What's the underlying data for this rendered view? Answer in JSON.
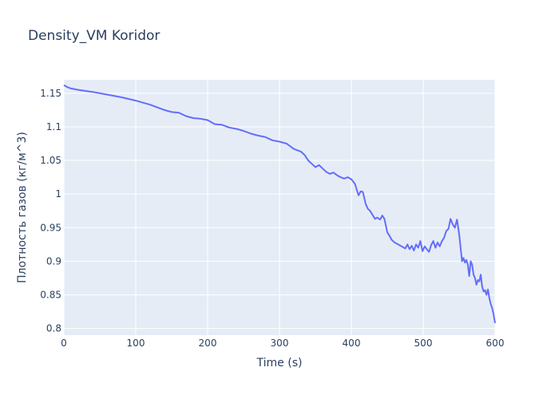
{
  "chart_data": {
    "type": "line",
    "title": "Density_VM Koridor",
    "xlabel": "Time (s)",
    "ylabel": "Плотность газов (кг/м^3)",
    "xlim": [
      0,
      600
    ],
    "ylim": [
      0.79,
      1.17
    ],
    "x_ticks": [
      0,
      100,
      200,
      300,
      400,
      500,
      600
    ],
    "x_tick_labels": [
      "0",
      "100",
      "200",
      "300",
      "400",
      "500",
      "600"
    ],
    "y_ticks": [
      0.8,
      0.85,
      0.9,
      0.95,
      1.0,
      1.05,
      1.1,
      1.15
    ],
    "y_tick_labels": [
      "0.8",
      "0.85",
      "0.9",
      "0.95",
      "1",
      "1.05",
      "1.1",
      "1.15"
    ],
    "grid": true,
    "legend": "none",
    "colors": {
      "plot_bg": "#e5ecf6",
      "grid": "#ffffff",
      "line": "#636efa",
      "text": "#2a3f5f"
    },
    "series": [
      {
        "x": [
          0,
          5,
          10,
          20,
          40,
          60,
          80,
          100,
          120,
          140,
          150,
          160,
          170,
          180,
          190,
          200,
          210,
          220,
          230,
          240,
          250,
          260,
          270,
          280,
          290,
          300,
          310,
          320,
          330,
          335,
          340,
          345,
          350,
          355,
          360,
          365,
          370,
          375,
          380,
          385,
          390,
          395,
          400,
          405,
          410,
          413,
          416,
          420,
          423,
          426,
          430,
          433,
          436,
          440,
          443,
          446,
          450,
          453,
          456,
          460,
          465,
          470,
          475,
          478,
          481,
          484,
          487,
          490,
          493,
          496,
          499,
          502,
          505,
          508,
          511,
          514,
          517,
          520,
          523,
          526,
          529,
          532,
          535,
          538,
          541,
          544,
          547,
          550,
          552,
          554,
          556,
          558,
          560,
          562,
          564,
          566,
          568,
          570,
          572,
          574,
          576,
          578,
          580,
          582,
          584,
          586,
          588,
          590,
          592,
          594,
          596,
          598,
          600
        ],
        "y": [
          1.162,
          1.159,
          1.157,
          1.155,
          1.152,
          1.148,
          1.144,
          1.139,
          1.133,
          1.125,
          1.122,
          1.121,
          1.116,
          1.113,
          1.112,
          1.11,
          1.104,
          1.103,
          1.099,
          1.097,
          1.094,
          1.09,
          1.087,
          1.085,
          1.08,
          1.078,
          1.075,
          1.067,
          1.063,
          1.058,
          1.05,
          1.045,
          1.04,
          1.043,
          1.038,
          1.033,
          1.03,
          1.032,
          1.028,
          1.025,
          1.023,
          1.025,
          1.022,
          1.015,
          0.998,
          1.004,
          1.003,
          0.985,
          0.978,
          0.975,
          0.968,
          0.963,
          0.965,
          0.962,
          0.968,
          0.963,
          0.943,
          0.938,
          0.932,
          0.928,
          0.925,
          0.922,
          0.919,
          0.925,
          0.918,
          0.923,
          0.916,
          0.925,
          0.92,
          0.93,
          0.915,
          0.922,
          0.918,
          0.914,
          0.924,
          0.93,
          0.92,
          0.928,
          0.922,
          0.93,
          0.935,
          0.945,
          0.948,
          0.963,
          0.955,
          0.95,
          0.962,
          0.94,
          0.92,
          0.9,
          0.905,
          0.898,
          0.902,
          0.895,
          0.878,
          0.9,
          0.895,
          0.88,
          0.875,
          0.865,
          0.872,
          0.87,
          0.88,
          0.862,
          0.855,
          0.857,
          0.85,
          0.858,
          0.845,
          0.836,
          0.83,
          0.82,
          0.808
        ]
      }
    ]
  }
}
